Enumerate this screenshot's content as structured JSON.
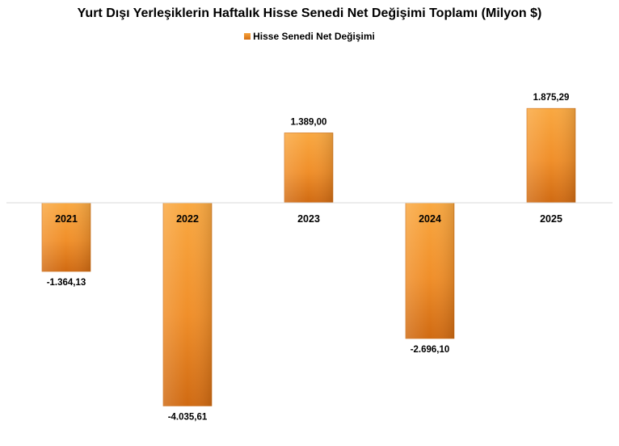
{
  "chart_data": {
    "type": "bar",
    "title": "Yurt Dışı Yerleşiklerin Haftalık Hisse Senedi Net Değişimi Toplamı (Milyon $)",
    "categories": [
      "2021",
      "2022",
      "2023",
      "2024",
      "2025"
    ],
    "series": [
      {
        "name": "Hisse Senedi Net Değişimi",
        "values": [
          -1364.13,
          -4035.61,
          1389.0,
          -2696.1,
          1875.29
        ],
        "labels": [
          "-1.364,13",
          "-4.035,61",
          "1.389,00",
          "-2.696,10",
          "1.875,29"
        ]
      }
    ],
    "xlabel": "",
    "ylabel": "",
    "ylim": [
      -5000,
      3000
    ],
    "grid": false,
    "legend_position": "top",
    "colors": {
      "bar_top": "#f7a23a",
      "bar_bottom": "#d46f14",
      "axis": "#d9d9d9"
    }
  }
}
